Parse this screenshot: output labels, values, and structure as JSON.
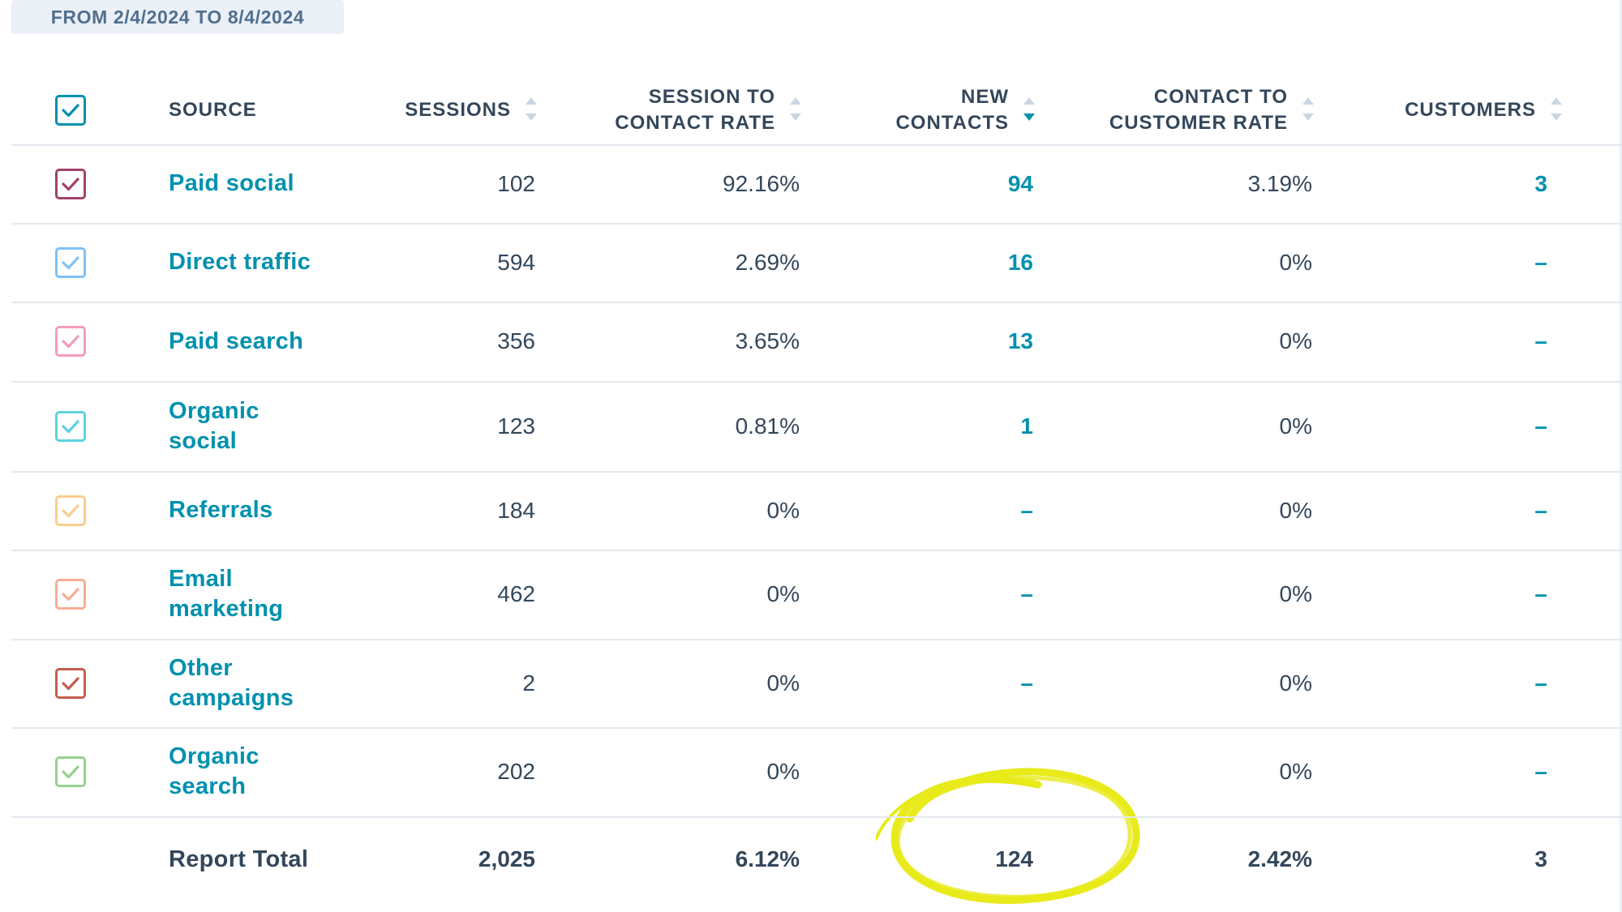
{
  "date_range": "FROM 2/4/2024 TO 8/4/2024",
  "columns": {
    "source": "SOURCE",
    "sessions": "SESSIONS",
    "session_to_contact_rate": [
      "SESSION TO",
      "CONTACT RATE"
    ],
    "new_contacts": [
      "NEW",
      "CONTACTS"
    ],
    "contact_to_customer_rate": [
      "CONTACT TO",
      "CUSTOMER RATE"
    ],
    "customers": "CUSTOMERS"
  },
  "sort": {
    "column": "new_contacts",
    "direction": "descending"
  },
  "header_checkbox_color": "#0091ae",
  "rows": [
    {
      "source": [
        "Paid social"
      ],
      "sessions": "102",
      "session_to_contact_rate": "92.16%",
      "new_contacts": "94",
      "contact_to_customer_rate": "3.19%",
      "customers": "3",
      "checkbox_color": "#a2426b"
    },
    {
      "source": [
        "Direct traffic"
      ],
      "sessions": "594",
      "session_to_contact_rate": "2.69%",
      "new_contacts": "16",
      "contact_to_customer_rate": "0%",
      "customers": "–",
      "checkbox_color": "#7fc2f5"
    },
    {
      "source": [
        "Paid search"
      ],
      "sessions": "356",
      "session_to_contact_rate": "3.65%",
      "new_contacts": "13",
      "contact_to_customer_rate": "0%",
      "customers": "–",
      "checkbox_color": "#f59cbb"
    },
    {
      "source": [
        "Organic",
        "social"
      ],
      "sessions": "123",
      "session_to_contact_rate": "0.81%",
      "new_contacts": "1",
      "contact_to_customer_rate": "0%",
      "customers": "–",
      "checkbox_color": "#5ed2e0"
    },
    {
      "source": [
        "Referrals"
      ],
      "sessions": "184",
      "session_to_contact_rate": "0%",
      "new_contacts": "–",
      "contact_to_customer_rate": "0%",
      "customers": "–",
      "checkbox_color": "#f9cd8f"
    },
    {
      "source": [
        "Email",
        "marketing"
      ],
      "sessions": "462",
      "session_to_contact_rate": "0%",
      "new_contacts": "–",
      "contact_to_customer_rate": "0%",
      "customers": "–",
      "checkbox_color": "#f7ad94"
    },
    {
      "source": [
        "Other",
        "campaigns"
      ],
      "sessions": "2",
      "session_to_contact_rate": "0%",
      "new_contacts": "–",
      "contact_to_customer_rate": "0%",
      "customers": "–",
      "checkbox_color": "#c25e4c"
    },
    {
      "source": [
        "Organic",
        "search"
      ],
      "sessions": "202",
      "session_to_contact_rate": "0%",
      "new_contacts": "",
      "contact_to_customer_rate": "0%",
      "customers": "–",
      "checkbox_color": "#96d28d"
    }
  ],
  "total": {
    "label": "Report Total",
    "sessions": "2,025",
    "session_to_contact_rate": "6.12%",
    "new_contacts": "124",
    "contact_to_customer_rate": "2.42%",
    "customers": "3"
  },
  "highlight": {
    "target": "total.new_contacts",
    "color": "#e8ea1a"
  }
}
